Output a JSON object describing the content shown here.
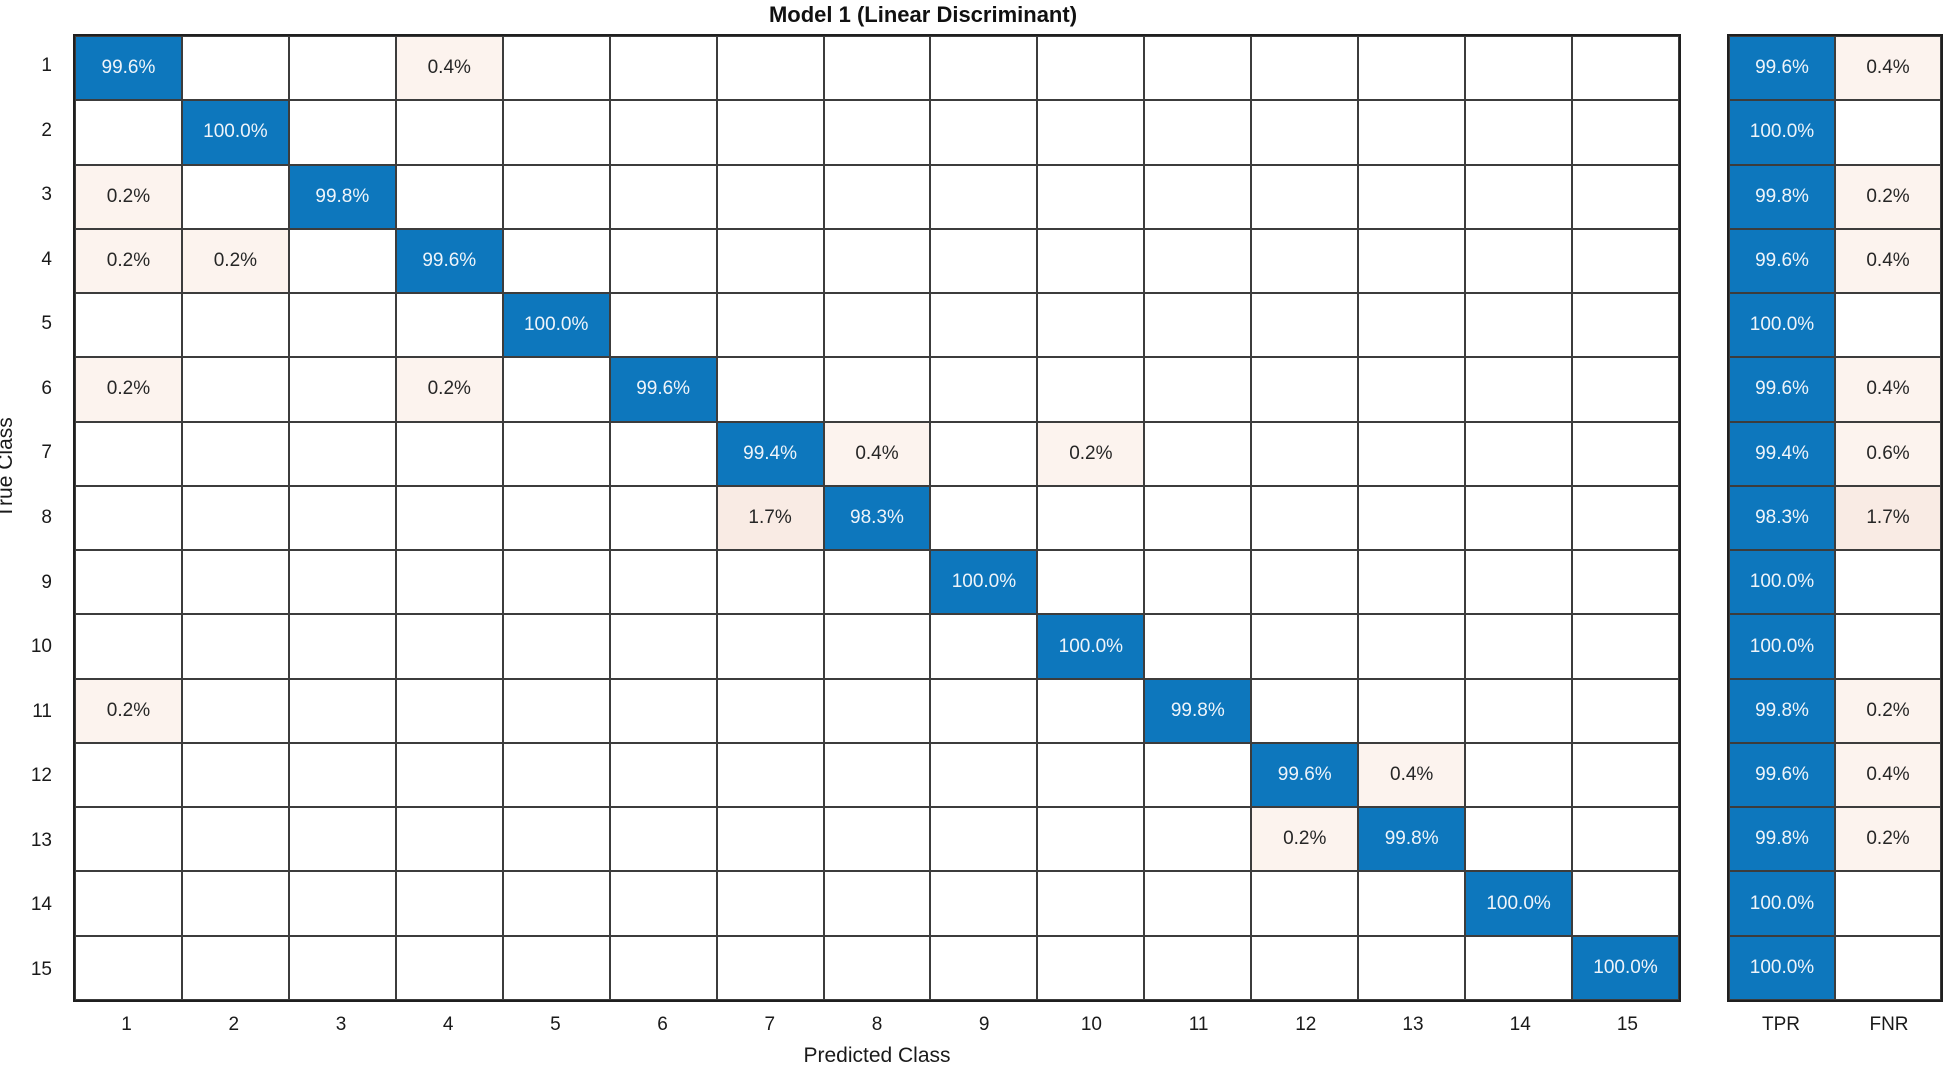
{
  "colors": {
    "diagonal_blue": "#0d77bd",
    "off_diagonal_pink": "#fcf3ee",
    "off_diagonal_pink_strong": "#f9ebe4",
    "grid_line": "#3c3c3c",
    "outer_border": "#1f1f1f",
    "text_on_blue": "#eef4fa",
    "text_dark": "#262626"
  },
  "chart_data": {
    "type": "heatmap",
    "subtype": "confusion-matrix",
    "title": "Model 1 (Linear Discriminant)",
    "x_label": "Predicted Class",
    "y_label": "True Class",
    "unit": "%",
    "classes": [
      "1",
      "2",
      "3",
      "4",
      "5",
      "6",
      "7",
      "8",
      "9",
      "10",
      "11",
      "12",
      "13",
      "14",
      "15"
    ],
    "cells": [
      {
        "r": 1,
        "c": 1,
        "v": 99.6
      },
      {
        "r": 1,
        "c": 4,
        "v": 0.4
      },
      {
        "r": 2,
        "c": 2,
        "v": 100
      },
      {
        "r": 3,
        "c": 1,
        "v": 0.2
      },
      {
        "r": 3,
        "c": 3,
        "v": 99.8
      },
      {
        "r": 4,
        "c": 1,
        "v": 0.2
      },
      {
        "r": 4,
        "c": 2,
        "v": 0.2
      },
      {
        "r": 4,
        "c": 4,
        "v": 99.6
      },
      {
        "r": 5,
        "c": 5,
        "v": 100
      },
      {
        "r": 6,
        "c": 1,
        "v": 0.2
      },
      {
        "r": 6,
        "c": 4,
        "v": 0.2
      },
      {
        "r": 6,
        "c": 6,
        "v": 99.6
      },
      {
        "r": 7,
        "c": 7,
        "v": 99.4
      },
      {
        "r": 7,
        "c": 8,
        "v": 0.4
      },
      {
        "r": 7,
        "c": 10,
        "v": 0.2
      },
      {
        "r": 8,
        "c": 7,
        "v": 1.7
      },
      {
        "r": 8,
        "c": 8,
        "v": 98.3
      },
      {
        "r": 9,
        "c": 9,
        "v": 100
      },
      {
        "r": 10,
        "c": 10,
        "v": 100
      },
      {
        "r": 11,
        "c": 1,
        "v": 0.2
      },
      {
        "r": 11,
        "c": 11,
        "v": 99.8
      },
      {
        "r": 12,
        "c": 12,
        "v": 99.6
      },
      {
        "r": 12,
        "c": 13,
        "v": 0.4
      },
      {
        "r": 13,
        "c": 12,
        "v": 0.2
      },
      {
        "r": 13,
        "c": 13,
        "v": 99.8
      },
      {
        "r": 14,
        "c": 14,
        "v": 100
      },
      {
        "r": 15,
        "c": 15,
        "v": 100
      }
    ],
    "summary": {
      "tpr_label": "TPR",
      "fnr_label": "FNR",
      "tpr": [
        99.6,
        100,
        99.8,
        99.6,
        100,
        99.6,
        99.4,
        98.3,
        100,
        100,
        99.8,
        99.6,
        99.8,
        100,
        100
      ],
      "fnr": [
        0.4,
        null,
        0.2,
        0.4,
        null,
        0.4,
        0.6,
        1.7,
        null,
        null,
        0.2,
        0.4,
        0.2,
        null,
        null
      ]
    },
    "layout": {
      "grid": "on",
      "n_classes": 15,
      "summary_position": "right"
    }
  }
}
